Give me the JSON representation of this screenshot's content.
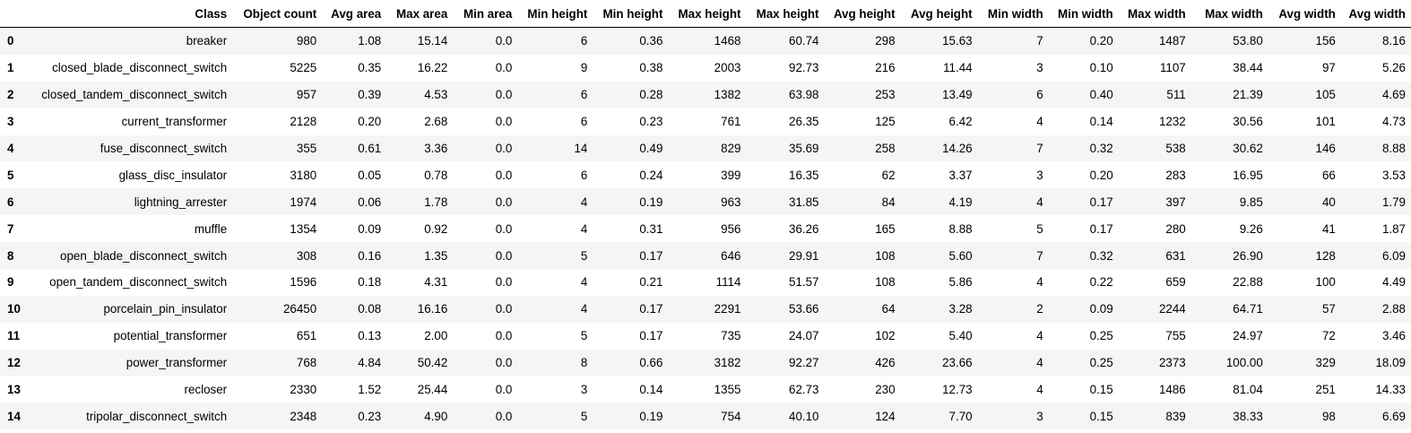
{
  "table": {
    "columns": [
      "",
      "Class",
      "Object count",
      "Avg area",
      "Max area",
      "Min area",
      "Min height",
      "Min height",
      "Max height",
      "Max height",
      "Avg height",
      "Avg height",
      "Min width",
      "Min width",
      "Max width",
      "Max width",
      "Avg width",
      "Avg width"
    ],
    "rows": [
      [
        "0",
        "breaker",
        "980",
        "1.08",
        "15.14",
        "0.0",
        "6",
        "0.36",
        "1468",
        "60.74",
        "298",
        "15.63",
        "7",
        "0.20",
        "1487",
        "53.80",
        "156",
        "8.16"
      ],
      [
        "1",
        "closed_blade_disconnect_switch",
        "5225",
        "0.35",
        "16.22",
        "0.0",
        "9",
        "0.38",
        "2003",
        "92.73",
        "216",
        "11.44",
        "3",
        "0.10",
        "1107",
        "38.44",
        "97",
        "5.26"
      ],
      [
        "2",
        "closed_tandem_disconnect_switch",
        "957",
        "0.39",
        "4.53",
        "0.0",
        "6",
        "0.28",
        "1382",
        "63.98",
        "253",
        "13.49",
        "6",
        "0.40",
        "511",
        "21.39",
        "105",
        "4.69"
      ],
      [
        "3",
        "current_transformer",
        "2128",
        "0.20",
        "2.68",
        "0.0",
        "6",
        "0.23",
        "761",
        "26.35",
        "125",
        "6.42",
        "4",
        "0.14",
        "1232",
        "30.56",
        "101",
        "4.73"
      ],
      [
        "4",
        "fuse_disconnect_switch",
        "355",
        "0.61",
        "3.36",
        "0.0",
        "14",
        "0.49",
        "829",
        "35.69",
        "258",
        "14.26",
        "7",
        "0.32",
        "538",
        "30.62",
        "146",
        "8.88"
      ],
      [
        "5",
        "glass_disc_insulator",
        "3180",
        "0.05",
        "0.78",
        "0.0",
        "6",
        "0.24",
        "399",
        "16.35",
        "62",
        "3.37",
        "3",
        "0.20",
        "283",
        "16.95",
        "66",
        "3.53"
      ],
      [
        "6",
        "lightning_arrester",
        "1974",
        "0.06",
        "1.78",
        "0.0",
        "4",
        "0.19",
        "963",
        "31.85",
        "84",
        "4.19",
        "4",
        "0.17",
        "397",
        "9.85",
        "40",
        "1.79"
      ],
      [
        "7",
        "muffle",
        "1354",
        "0.09",
        "0.92",
        "0.0",
        "4",
        "0.31",
        "956",
        "36.26",
        "165",
        "8.88",
        "5",
        "0.17",
        "280",
        "9.26",
        "41",
        "1.87"
      ],
      [
        "8",
        "open_blade_disconnect_switch",
        "308",
        "0.16",
        "1.35",
        "0.0",
        "5",
        "0.17",
        "646",
        "29.91",
        "108",
        "5.60",
        "7",
        "0.32",
        "631",
        "26.90",
        "128",
        "6.09"
      ],
      [
        "9",
        "open_tandem_disconnect_switch",
        "1596",
        "0.18",
        "4.31",
        "0.0",
        "4",
        "0.21",
        "1114",
        "51.57",
        "108",
        "5.86",
        "4",
        "0.22",
        "659",
        "22.88",
        "100",
        "4.49"
      ],
      [
        "10",
        "porcelain_pin_insulator",
        "26450",
        "0.08",
        "16.16",
        "0.0",
        "4",
        "0.17",
        "2291",
        "53.66",
        "64",
        "3.28",
        "2",
        "0.09",
        "2244",
        "64.71",
        "57",
        "2.88"
      ],
      [
        "11",
        "potential_transformer",
        "651",
        "0.13",
        "2.00",
        "0.0",
        "5",
        "0.17",
        "735",
        "24.07",
        "102",
        "5.40",
        "4",
        "0.25",
        "755",
        "24.97",
        "72",
        "3.46"
      ],
      [
        "12",
        "power_transformer",
        "768",
        "4.84",
        "50.42",
        "0.0",
        "8",
        "0.66",
        "3182",
        "92.27",
        "426",
        "23.66",
        "4",
        "0.25",
        "2373",
        "100.00",
        "329",
        "18.09"
      ],
      [
        "13",
        "recloser",
        "2330",
        "1.52",
        "25.44",
        "0.0",
        "3",
        "0.14",
        "1355",
        "62.73",
        "230",
        "12.73",
        "4",
        "0.15",
        "1486",
        "81.04",
        "251",
        "14.33"
      ],
      [
        "14",
        "tripolar_disconnect_switch",
        "2348",
        "0.23",
        "4.90",
        "0.0",
        "5",
        "0.19",
        "754",
        "40.10",
        "124",
        "7.70",
        "3",
        "0.15",
        "839",
        "38.33",
        "98",
        "6.69"
      ]
    ]
  }
}
